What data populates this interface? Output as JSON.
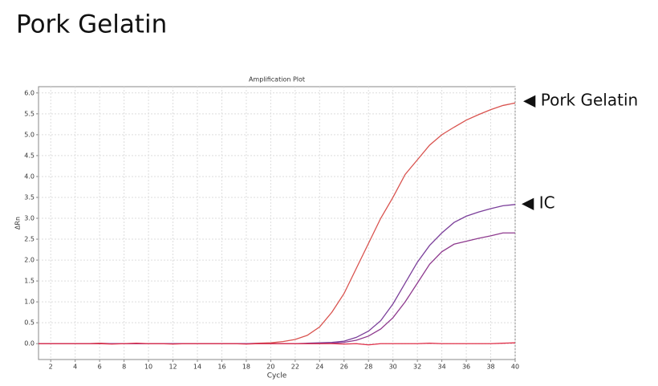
{
  "header": {
    "title": "Pork Gelatin"
  },
  "chart_data": {
    "type": "line",
    "title": "Amplification Plot",
    "x_label": "Cycle",
    "y_label": "ΔRn",
    "x": [
      1,
      2,
      3,
      4,
      5,
      6,
      7,
      8,
      9,
      10,
      11,
      12,
      13,
      14,
      15,
      16,
      17,
      18,
      19,
      20,
      21,
      22,
      23,
      24,
      25,
      26,
      27,
      28,
      29,
      30,
      31,
      32,
      33,
      34,
      35,
      36,
      37,
      38,
      39,
      40
    ],
    "series": [
      {
        "color": "#d9534f",
        "values": [
          0,
          0,
          0,
          0,
          0,
          0.01,
          0,
          0,
          0,
          0,
          0,
          0,
          0,
          0,
          0,
          0,
          0,
          0,
          0.01,
          0.02,
          0.05,
          0.1,
          0.2,
          0.4,
          0.75,
          1.2,
          1.8,
          2.4,
          3.0,
          3.5,
          4.05,
          4.4,
          4.75,
          5.0,
          5.18,
          5.35,
          5.48,
          5.6,
          5.7,
          5.76
        ]
      },
      {
        "color": "#7b3f9a",
        "values": [
          0,
          0,
          0,
          0,
          0,
          0,
          0,
          0,
          0,
          0,
          0,
          0,
          0,
          0,
          0,
          0,
          0,
          0,
          0,
          0,
          0,
          0,
          0.01,
          0.02,
          0.03,
          0.06,
          0.15,
          0.3,
          0.55,
          0.95,
          1.45,
          1.95,
          2.35,
          2.65,
          2.9,
          3.05,
          3.15,
          3.23,
          3.3,
          3.33
        ]
      },
      {
        "color": "#8e3a8e",
        "values": [
          0,
          0,
          0,
          0,
          0,
          0,
          0,
          0,
          0,
          0,
          0,
          0,
          0,
          0,
          0,
          0,
          0,
          0,
          0,
          0,
          0,
          0,
          0,
          0,
          0.01,
          0.03,
          0.08,
          0.18,
          0.35,
          0.62,
          1.0,
          1.45,
          1.9,
          2.2,
          2.38,
          2.45,
          2.52,
          2.58,
          2.65,
          2.65
        ]
      },
      {
        "color": "#e0304a",
        "values": [
          0,
          0,
          0,
          0,
          0,
          0,
          -0.01,
          0,
          0.01,
          0,
          0,
          -0.01,
          0,
          0,
          0,
          0,
          0,
          -0.01,
          0,
          0,
          0,
          0,
          0,
          0,
          0,
          -0.01,
          0,
          -0.03,
          0,
          0,
          0,
          0,
          0.01,
          0,
          0,
          0,
          0,
          0,
          0.01,
          0.02
        ]
      }
    ],
    "xlim": [
      1,
      40
    ],
    "xticks": [
      2,
      4,
      6,
      8,
      10,
      12,
      14,
      16,
      18,
      20,
      22,
      24,
      26,
      28,
      30,
      32,
      34,
      36,
      38,
      40
    ],
    "ylim": [
      -0.38,
      6.15
    ],
    "yticks": [
      {
        "value": 0,
        "label": "0.0"
      },
      {
        "value": 0.5,
        "label": "0.5"
      },
      {
        "value": 1,
        "label": "1.0"
      },
      {
        "value": 1.5,
        "label": "1.5"
      },
      {
        "value": 2,
        "label": "2.0"
      },
      {
        "value": 2.5,
        "label": "2.5"
      },
      {
        "value": 3,
        "label": "3.0"
      },
      {
        "value": 3.5,
        "label": "3.5"
      },
      {
        "value": 4,
        "label": "4.0"
      },
      {
        "value": 4.5,
        "label": "4.5"
      },
      {
        "value": 5,
        "label": "5.0"
      },
      {
        "value": 5.5,
        "label": "5.5"
      },
      {
        "value": 6,
        "label": "6.0"
      }
    ],
    "grid": true,
    "annotations": [
      "◀ Pork Gelatin",
      "◀ IC"
    ]
  }
}
